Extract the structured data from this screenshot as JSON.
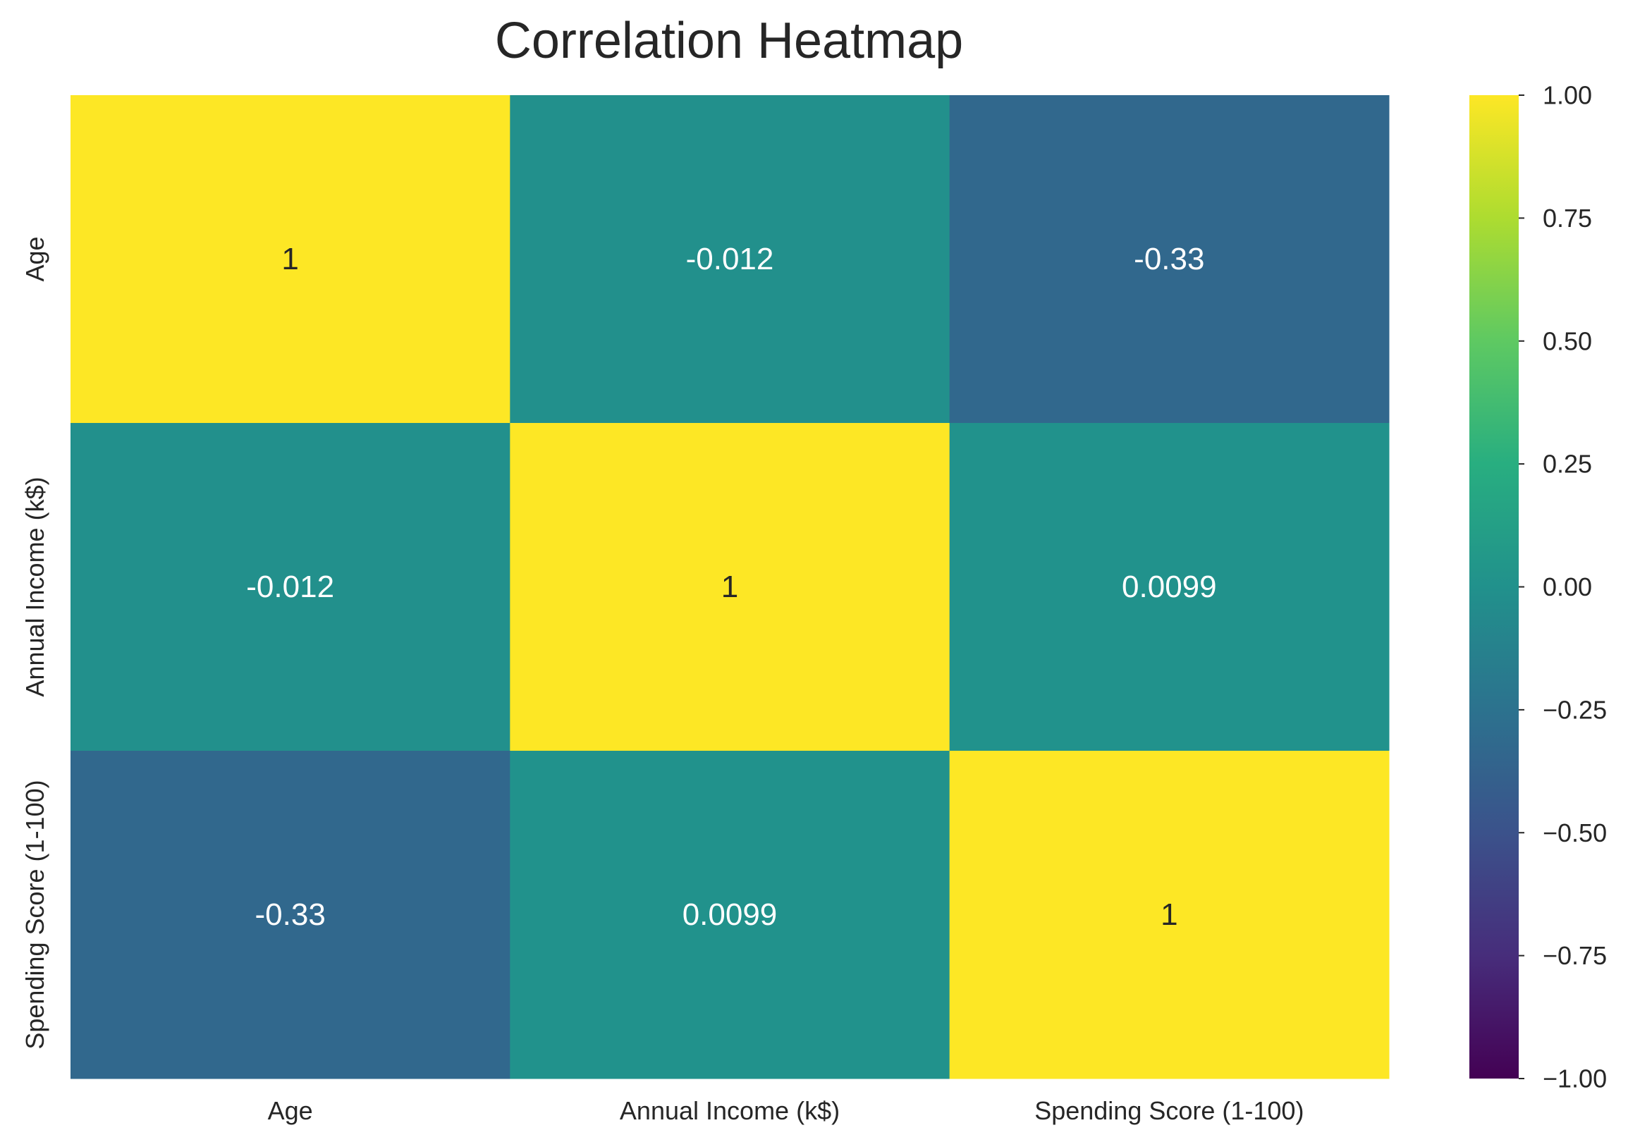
{
  "chart_data": {
    "type": "heatmap",
    "title": "Correlation Heatmap",
    "x_labels": [
      "Age",
      "Annual Income (k$)",
      "Spending Score (1-100)"
    ],
    "y_labels": [
      "Age",
      "Annual Income (k$)",
      "Spending Score (1-100)"
    ],
    "values": [
      [
        1,
        -0.012,
        -0.33
      ],
      [
        -0.012,
        1,
        0.0099
      ],
      [
        -0.33,
        0.0099,
        1
      ]
    ],
    "annotations": [
      [
        "1",
        "-0.012",
        "-0.33"
      ],
      [
        "-0.012",
        "1",
        "0.0099"
      ],
      [
        "-0.33",
        "0.0099",
        "1"
      ]
    ],
    "colormap": "viridis",
    "vmin": -1.0,
    "vmax": 1.0,
    "colorbar_ticks": [
      "1.00",
      "0.75",
      "0.50",
      "0.25",
      "0.00",
      "−0.25",
      "−0.50",
      "−0.75",
      "−1.00"
    ],
    "colorbar_tick_values": [
      1.0,
      0.75,
      0.5,
      0.25,
      0.0,
      -0.25,
      -0.5,
      -0.75,
      -1.0
    ],
    "grid": false,
    "legend": "colorbar-right"
  }
}
